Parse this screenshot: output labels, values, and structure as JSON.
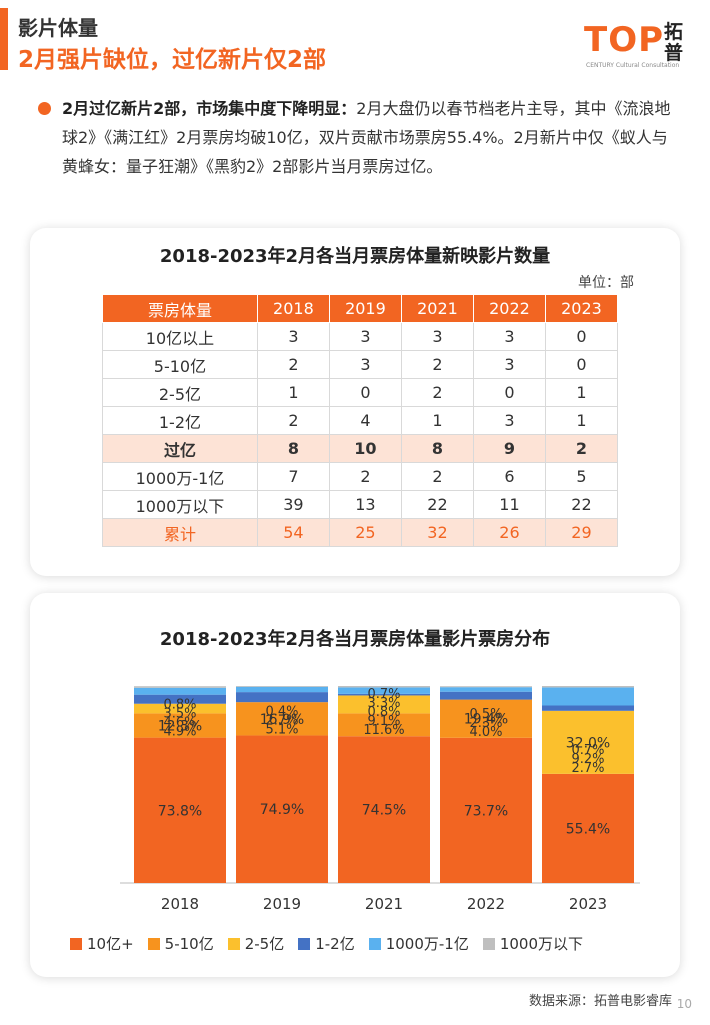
{
  "header": {
    "section_label": "影片体量",
    "title": "2月强片缺位，过亿新片仅2部"
  },
  "logo": {
    "text": "TOP",
    "zh": "拓普",
    "sub": "CENTURY Cultural Consultation"
  },
  "bullet": {
    "lead": "2月过亿新片2部，市场集中度下降明显：",
    "body": "2月大盘仍以春节档老片主导，其中《流浪地球2》《满江红》2月票房均破10亿，双片贡献市场票房55.4%。2月新片中仅《蚁人与黄蜂女：量子狂潮》《黑豹2》2部影片当月票房过亿。"
  },
  "table_card": {
    "title": "2018-2023年2月各当月票房体量新映影片数量",
    "unit": "单位：部",
    "header": [
      "票房体量",
      "2018",
      "2019",
      "2021",
      "2022",
      "2023"
    ],
    "rows": [
      {
        "label": "10亿以上",
        "values": [
          "3",
          "3",
          "3",
          "3",
          "0"
        ]
      },
      {
        "label": "5-10亿",
        "values": [
          "2",
          "3",
          "2",
          "3",
          "0"
        ]
      },
      {
        "label": "2-5亿",
        "values": [
          "1",
          "0",
          "2",
          "0",
          "1"
        ]
      },
      {
        "label": "1-2亿",
        "values": [
          "2",
          "4",
          "1",
          "3",
          "1"
        ]
      },
      {
        "label": "过亿",
        "values": [
          "8",
          "10",
          "8",
          "9",
          "2"
        ]
      },
      {
        "label": "1000万-1亿",
        "values": [
          "7",
          "2",
          "2",
          "6",
          "5"
        ]
      },
      {
        "label": "1000万以下",
        "values": [
          "39",
          "13",
          "22",
          "11",
          "22"
        ]
      },
      {
        "label": "累计",
        "values": [
          "54",
          "25",
          "32",
          "26",
          "29"
        ]
      }
    ]
  },
  "chart_data": {
    "type": "bar",
    "title": "2018-2023年2月各当月票房体量影片票房分布",
    "stacked": true,
    "categories": [
      "2018",
      "2019",
      "2021",
      "2022",
      "2023"
    ],
    "ylim": [
      0,
      100
    ],
    "series": [
      {
        "name": "10亿+",
        "color": "#f26522",
        "values": [
          73.8,
          74.9,
          74.5,
          73.7,
          55.4
        ],
        "labels": [
          "73.8%",
          "74.9%",
          "74.5%",
          "73.7%",
          "55.4%"
        ]
      },
      {
        "name": "5-10亿",
        "color": "#f7931e",
        "values": [
          12.3,
          16.9,
          11.6,
          19.4,
          0
        ],
        "labels": [
          "12.3%",
          "16.9%",
          "11.6%",
          "19.4%",
          ""
        ]
      },
      {
        "name": "2-5亿",
        "color": "#fbc02d",
        "values": [
          4.9,
          0,
          9.1,
          0,
          32.0
        ],
        "labels": [
          "4.9%",
          "",
          "9.1%",
          "",
          "32.0%"
        ]
      },
      {
        "name": "1-2亿",
        "color": "#4472c4",
        "values": [
          4.6,
          5.1,
          0.8,
          4.0,
          2.7
        ],
        "labels": [
          "4.6%",
          "5.1%",
          "0.8%",
          "4.0%",
          "2.7%"
        ]
      },
      {
        "name": "1000万-1亿",
        "color": "#5ab1ef",
        "values": [
          3.5,
          2.7,
          3.3,
          2.3,
          9.2
        ],
        "labels": [
          "3.5%",
          "2.7%",
          "3.3%",
          "2.3%",
          "9.2%"
        ]
      },
      {
        "name": "1000万以下",
        "color": "#bfbfbf",
        "values": [
          0.8,
          0.4,
          0.7,
          0.5,
          0.7
        ],
        "labels": [
          "0.8%",
          "0.4%",
          "0.7%",
          "0.5%",
          "0.7%"
        ]
      }
    ]
  },
  "footer": {
    "source": "数据来源：拓普电影睿库",
    "page": "10"
  }
}
